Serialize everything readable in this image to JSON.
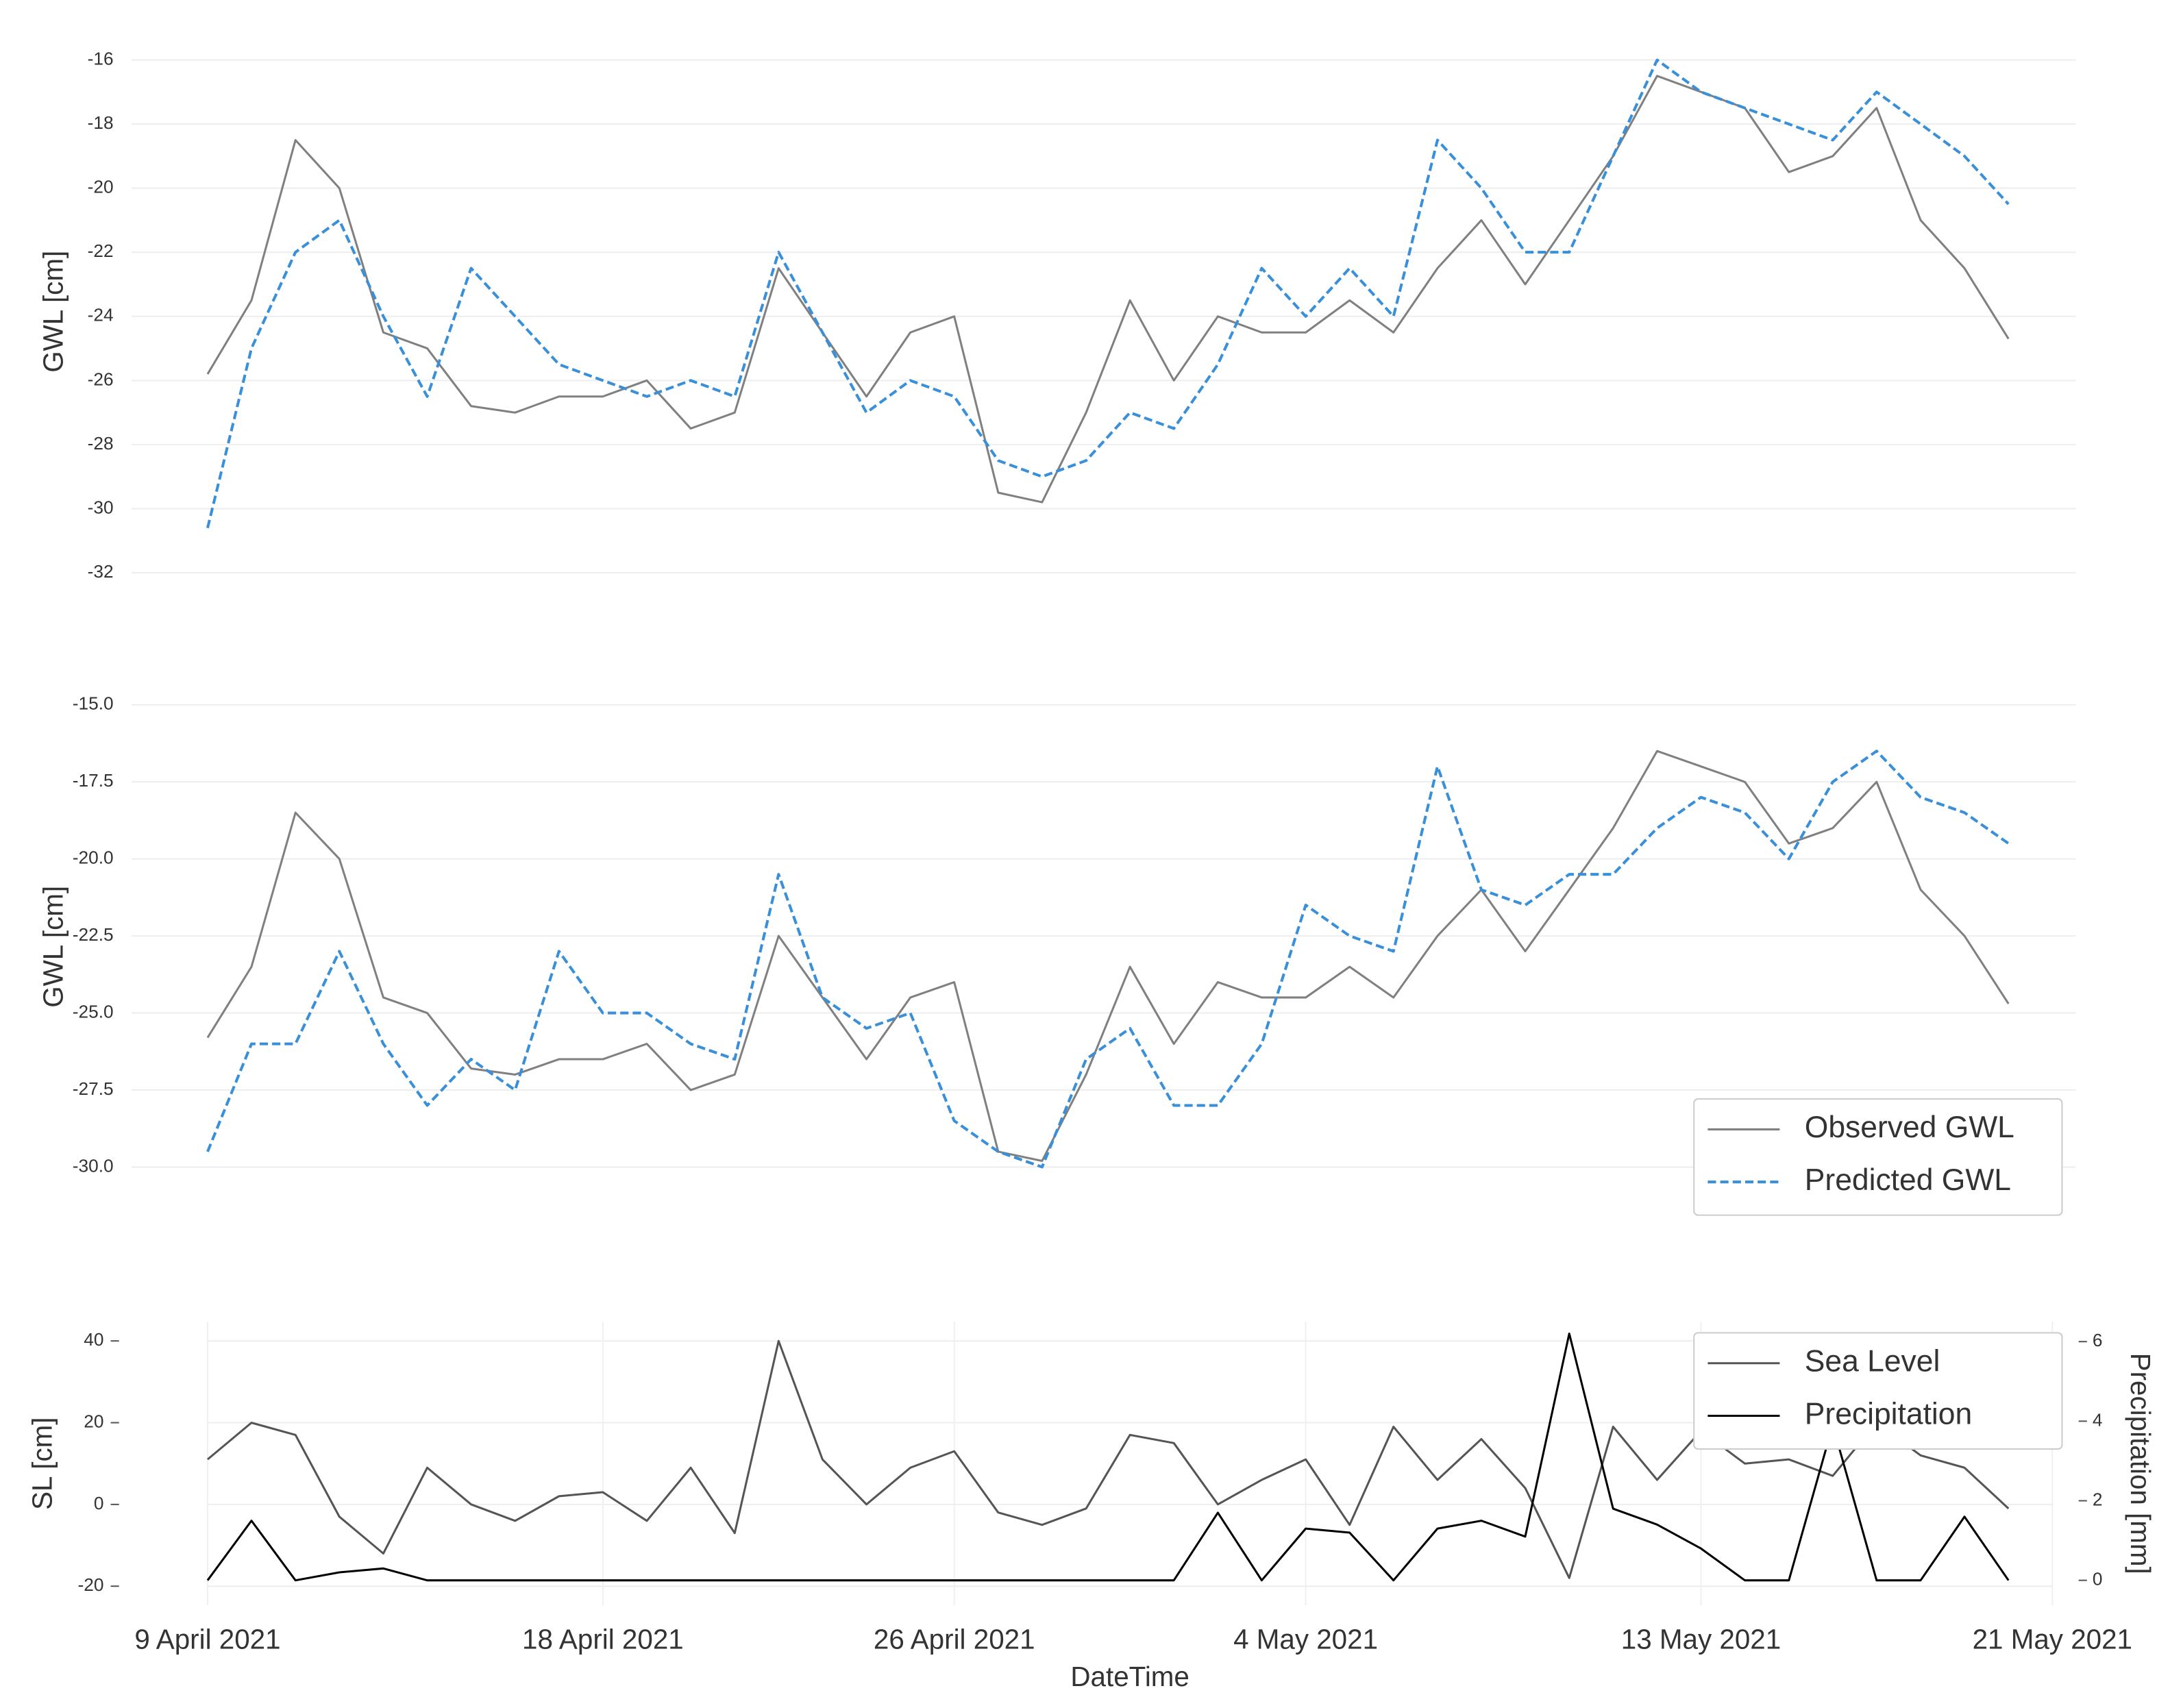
{
  "chart_data": [
    {
      "type": "line",
      "ylabel": "GWL [cm]",
      "x": [
        "2021-04-09",
        "2021-04-10",
        "2021-04-11",
        "2021-04-12",
        "2021-04-13",
        "2021-04-14",
        "2021-04-15",
        "2021-04-16",
        "2021-04-17",
        "2021-04-18",
        "2021-04-19",
        "2021-04-20",
        "2021-04-21",
        "2021-04-22",
        "2021-04-23",
        "2021-04-24",
        "2021-04-25",
        "2021-04-26",
        "2021-04-27",
        "2021-04-28",
        "2021-04-29",
        "2021-04-30",
        "2021-05-01",
        "2021-05-02",
        "2021-05-03",
        "2021-05-04",
        "2021-05-05",
        "2021-05-06",
        "2021-05-07",
        "2021-05-08",
        "2021-05-09",
        "2021-05-10",
        "2021-05-11",
        "2021-05-12",
        "2021-05-13",
        "2021-05-14",
        "2021-05-15",
        "2021-05-16",
        "2021-05-17",
        "2021-05-18",
        "2021-05-19",
        "2021-05-20"
      ],
      "series": [
        {
          "name": "Observed GWL",
          "color": "#808080",
          "dashed": false,
          "values": [
            -25.8,
            -23.5,
            -18.5,
            -20,
            -24.5,
            -25,
            -26.8,
            -27,
            -26.5,
            -26.5,
            -26,
            -27.5,
            -27,
            -22.5,
            -24.5,
            -26.5,
            -24.5,
            -24,
            -29.5,
            -29.8,
            -27,
            -23.5,
            -26,
            -24,
            -24.5,
            -24.5,
            -23.5,
            -24.5,
            -22.5,
            -21,
            -23,
            -21,
            -19,
            -16.5,
            -17,
            -17.5,
            -19.5,
            -19,
            -17.5,
            -21,
            -22.5,
            -24.7
          ]
        },
        {
          "name": "Predicted GWL",
          "color": "#3a8fd9",
          "dashed": true,
          "values": [
            -30.6,
            -25,
            -22,
            -21,
            -24,
            -26.5,
            -22.5,
            -24,
            -25.5,
            -26,
            -26.5,
            -26,
            -26.5,
            -22,
            -24.5,
            -27,
            -26,
            -26.5,
            -28.5,
            -29,
            -28.5,
            -27,
            -27.5,
            -25.5,
            -22.5,
            -24,
            -22.5,
            -24,
            -18.5,
            -20,
            -22,
            -22,
            -19,
            -16,
            -17,
            -17.5,
            -18,
            -18.5,
            -17,
            -18,
            -19,
            -20.5
          ]
        }
      ],
      "xlim": [
        "2021-04-09",
        "2021-05-21"
      ],
      "ylim": [
        -32.7,
        -15.0
      ],
      "yticks": [
        -16,
        -18,
        -20,
        -22,
        -24,
        -26,
        -28,
        -30,
        -32
      ],
      "grid": true
    },
    {
      "type": "line",
      "ylabel": "GWL [cm]",
      "x": [
        "2021-04-09",
        "2021-04-10",
        "2021-04-11",
        "2021-04-12",
        "2021-04-13",
        "2021-04-14",
        "2021-04-15",
        "2021-04-16",
        "2021-04-17",
        "2021-04-18",
        "2021-04-19",
        "2021-04-20",
        "2021-04-21",
        "2021-04-22",
        "2021-04-23",
        "2021-04-24",
        "2021-04-25",
        "2021-04-26",
        "2021-04-27",
        "2021-04-28",
        "2021-04-29",
        "2021-04-30",
        "2021-05-01",
        "2021-05-02",
        "2021-05-03",
        "2021-05-04",
        "2021-05-05",
        "2021-05-06",
        "2021-05-07",
        "2021-05-08",
        "2021-05-09",
        "2021-05-10",
        "2021-05-11",
        "2021-05-12",
        "2021-05-13",
        "2021-05-14",
        "2021-05-15",
        "2021-05-16",
        "2021-05-17",
        "2021-05-18",
        "2021-05-19",
        "2021-05-20"
      ],
      "series": [
        {
          "name": "Observed GWL",
          "color": "#808080",
          "dashed": false,
          "values": [
            -25.8,
            -23.5,
            -18.5,
            -20,
            -24.5,
            -25,
            -26.8,
            -27,
            -26.5,
            -26.5,
            -26,
            -27.5,
            -27,
            -22.5,
            -24.5,
            -26.5,
            -24.5,
            -24,
            -29.5,
            -29.8,
            -27,
            -23.5,
            -26,
            -24,
            -24.5,
            -24.5,
            -23.5,
            -24.5,
            -22.5,
            -21,
            -23,
            -21,
            -19,
            -16.5,
            -17,
            -17.5,
            -19.5,
            -19,
            -17.5,
            -21,
            -22.5,
            -24.7
          ]
        },
        {
          "name": "Predicted GWL",
          "color": "#3a8fd9",
          "dashed": true,
          "values": [
            -29.5,
            -26,
            -26,
            -23,
            -26,
            -28,
            -26.5,
            -27.5,
            -23,
            -25,
            -25,
            -26,
            -26.5,
            -20.5,
            -24.5,
            -25.5,
            -25,
            -28.5,
            -29.5,
            -30,
            -26.5,
            -25.5,
            -28,
            -28,
            -26,
            -21.5,
            -22.5,
            -23,
            -17,
            -21,
            -21.5,
            -20.5,
            -20.5,
            -19,
            -18,
            -18.5,
            -20,
            -17.5,
            -16.5,
            -18,
            -18.5,
            -19.5
          ]
        }
      ],
      "xlim": [
        "2021-04-09",
        "2021-05-21"
      ],
      "ylim": [
        -32.1,
        -13.6
      ],
      "yticks": [
        {
          "value": -15,
          "label": "-15.0"
        },
        -17.5,
        {
          "value": -20,
          "label": "-20.0"
        },
        -22.5,
        {
          "value": -25,
          "label": "-25.0"
        },
        -27.5,
        {
          "value": -30,
          "label": "-30.0"
        }
      ],
      "grid": true,
      "legend": "lower right"
    },
    {
      "type": "line",
      "ylabel": "SL [cm]",
      "y2label": "Precipitation [mm]",
      "xlabel": "DateTime",
      "x": [
        "2021-04-09",
        "2021-04-10",
        "2021-04-11",
        "2021-04-12",
        "2021-04-13",
        "2021-04-14",
        "2021-04-15",
        "2021-04-16",
        "2021-04-17",
        "2021-04-18",
        "2021-04-19",
        "2021-04-20",
        "2021-04-21",
        "2021-04-22",
        "2021-04-23",
        "2021-04-24",
        "2021-04-25",
        "2021-04-26",
        "2021-04-27",
        "2021-04-28",
        "2021-04-29",
        "2021-04-30",
        "2021-05-01",
        "2021-05-02",
        "2021-05-03",
        "2021-05-04",
        "2021-05-05",
        "2021-05-06",
        "2021-05-07",
        "2021-05-08",
        "2021-05-09",
        "2021-05-10",
        "2021-05-11",
        "2021-05-12",
        "2021-05-13",
        "2021-05-14",
        "2021-05-15",
        "2021-05-16",
        "2021-05-17",
        "2021-05-18",
        "2021-05-19",
        "2021-05-20"
      ],
      "series": [
        {
          "name": "Sea Level",
          "color": "#555555",
          "dashed": false,
          "values": [
            11,
            20,
            17,
            -3,
            -12,
            9,
            0,
            -4,
            2,
            3,
            -4,
            9,
            -7,
            40,
            11,
            0,
            9,
            13,
            -2,
            -5,
            -1,
            17,
            15,
            0,
            6,
            11,
            -5,
            19,
            6,
            16,
            4,
            -18,
            19,
            6,
            18,
            10,
            11,
            7,
            20,
            12,
            9,
            -1
          ]
        },
        {
          "name": "Precipitation",
          "color": "#000000",
          "dashed": false,
          "axis": "y2",
          "values": [
            0,
            1.5,
            0,
            0.2,
            0.3,
            0,
            0,
            0,
            0,
            0,
            0,
            0,
            0,
            0,
            0,
            0,
            0,
            0,
            0,
            0,
            0,
            0,
            0,
            1.7,
            0,
            1.3,
            1.2,
            0,
            1.3,
            1.5,
            1.1,
            6.2,
            1.8,
            1.4,
            0.8,
            0,
            0,
            3.9,
            0,
            0,
            1.6,
            0
          ]
        }
      ],
      "xlim": [
        "2021-04-09",
        "2021-05-21"
      ],
      "xticks": [
        {
          "value": "2021-04-09",
          "label": "9 April 2021"
        },
        {
          "value": "2021-04-18",
          "label": "18 April 2021"
        },
        {
          "value": "2021-04-26",
          "label": "26 April 2021"
        },
        {
          "value": "2021-05-04",
          "label": "4 May 2021"
        },
        {
          "value": "2021-05-13",
          "label": "13 May 2021"
        },
        {
          "value": "2021-05-21",
          "label": "21 May 2021"
        }
      ],
      "ylim": [
        -24.7,
        44.7
      ],
      "yticks": [
        40,
        20,
        0,
        -20
      ],
      "y2lim": [
        -0.63,
        6.5
      ],
      "y2ticks": [
        6,
        4,
        2,
        0
      ],
      "grid": true,
      "legend": "upper right"
    }
  ]
}
